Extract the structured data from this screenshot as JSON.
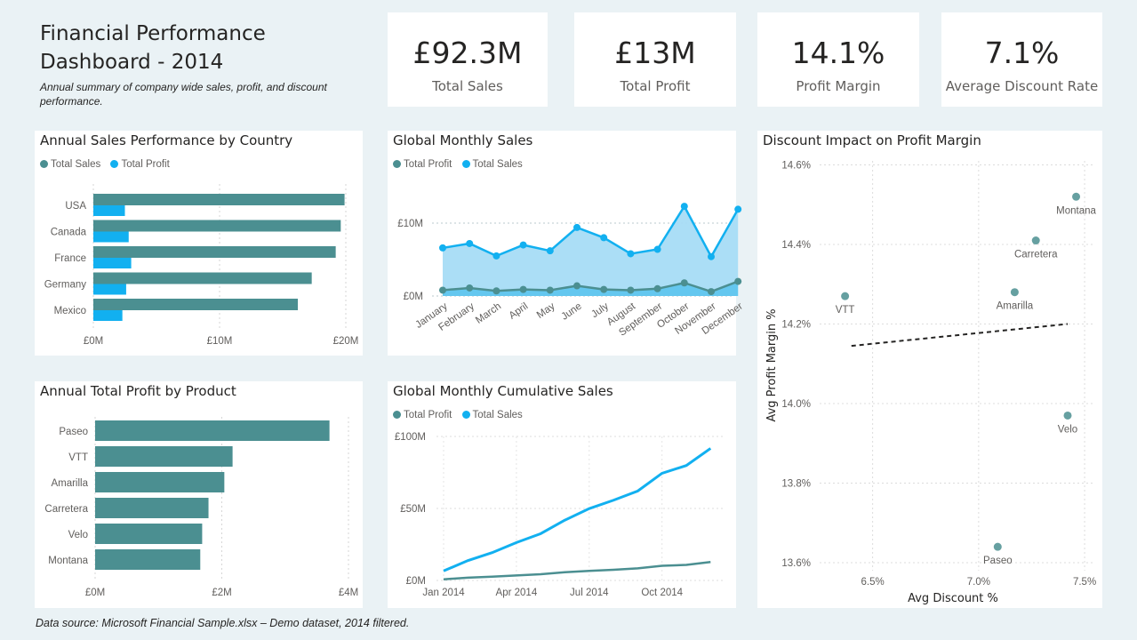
{
  "header": {
    "title_line1": "Financial Performance",
    "title_line2": "Dashboard - 2014",
    "subtitle": "Annual summary of company wide sales, profit, and discount performance."
  },
  "kpis": [
    {
      "value": "£92.3M",
      "label": "Total Sales"
    },
    {
      "value": "£13M",
      "label": "Total Profit"
    },
    {
      "value": "14.1%",
      "label": "Profit Margin"
    },
    {
      "value": "7.1%",
      "label": "Average Discount Rate"
    }
  ],
  "colors": {
    "teal": "#4b8f91",
    "blue": "#12b0f0",
    "area_fill": "#a6dcf6"
  },
  "footer": "Data source: Microsoft Financial Sample.xlsx – Demo dataset, 2014 filtered.",
  "chart_data": [
    {
      "type": "bar",
      "orientation": "horizontal",
      "title": "Annual Sales Performance by Country",
      "categories": [
        "USA",
        "Canada",
        "France",
        "Germany",
        "Mexico"
      ],
      "series": [
        {
          "name": "Total Sales",
          "values": [
            19.9,
            19.6,
            19.2,
            17.3,
            16.2
          ]
        },
        {
          "name": "Total Profit",
          "values": [
            2.5,
            2.8,
            3.0,
            2.6,
            2.3
          ]
        }
      ],
      "xlim": [
        0,
        20
      ],
      "tick_labels": [
        "£0M",
        "£10M",
        "£20M"
      ],
      "legend": [
        "Total Sales",
        "Total Profit"
      ],
      "legend_position": "top-left",
      "grid": true
    },
    {
      "type": "area",
      "title": "Global Monthly Sales",
      "categories": [
        "January",
        "February",
        "March",
        "April",
        "May",
        "June",
        "July",
        "August",
        "September",
        "October",
        "November",
        "December"
      ],
      "series": [
        {
          "name": "Total Profit",
          "values": [
            0.8,
            1.1,
            0.7,
            0.9,
            0.8,
            1.4,
            0.9,
            0.8,
            1.0,
            1.8,
            0.6,
            2.0
          ]
        },
        {
          "name": "Total Sales",
          "values": [
            6.6,
            7.2,
            5.5,
            7.0,
            6.2,
            9.4,
            8.0,
            5.8,
            6.4,
            12.3,
            5.4,
            11.9
          ]
        }
      ],
      "ylim": [
        0,
        14
      ],
      "tick_labels": [
        "£0M",
        "£10M"
      ],
      "legend": [
        "Total Profit",
        "Total Sales"
      ],
      "legend_position": "top-left",
      "grid": true
    },
    {
      "type": "scatter",
      "title": "Discount Impact on Profit Margin",
      "xlabel": "Avg Discount %",
      "ylabel": "Avg Profit Margin %",
      "points": [
        {
          "label": "Montana",
          "x": 7.46,
          "y": 14.52
        },
        {
          "label": "Carretera",
          "x": 7.27,
          "y": 14.41
        },
        {
          "label": "VTT",
          "x": 6.37,
          "y": 14.27
        },
        {
          "label": "Amarilla",
          "x": 7.17,
          "y": 14.28
        },
        {
          "label": "Velo",
          "x": 7.42,
          "y": 13.97
        },
        {
          "label": "Paseo",
          "x": 7.09,
          "y": 13.64
        }
      ],
      "trendline": {
        "x": [
          6.4,
          7.42
        ],
        "y": [
          14.145,
          14.2
        ]
      },
      "xlim": [
        6.25,
        7.55
      ],
      "ylim": [
        13.58,
        14.61
      ],
      "x_tick_labels": [
        "6.5%",
        "7.0%",
        "7.5%"
      ],
      "y_tick_labels": [
        "14.6%",
        "14.4%",
        "14.2%",
        "14.0%",
        "13.8%",
        "13.6%"
      ],
      "grid": true
    },
    {
      "type": "bar",
      "orientation": "horizontal",
      "title": "Annual Total Profit by Product",
      "categories": [
        "Paseo",
        "VTT",
        "Amarilla",
        "Carretera",
        "Velo",
        "Montana"
      ],
      "values": [
        3.7,
        2.17,
        2.04,
        1.79,
        1.69,
        1.66
      ],
      "xlim": [
        0,
        4
      ],
      "tick_labels": [
        "£0M",
        "£2M",
        "£4M"
      ],
      "grid": true
    },
    {
      "type": "line",
      "title": "Global Monthly Cumulative Sales",
      "x": [
        "Jan 2014",
        "Feb 2014",
        "Mar 2014",
        "Apr 2014",
        "May 2014",
        "Jun 2014",
        "Jul 2014",
        "Aug 2014",
        "Sep 2014",
        "Oct 2014",
        "Nov 2014",
        "Dec 2014"
      ],
      "series": [
        {
          "name": "Total Profit",
          "values": [
            0.8,
            1.9,
            2.6,
            3.5,
            4.3,
            5.7,
            6.6,
            7.4,
            8.4,
            10.2,
            10.8,
            12.8
          ]
        },
        {
          "name": "Total Sales",
          "values": [
            6.6,
            13.8,
            19.3,
            26.3,
            32.5,
            41.9,
            49.9,
            55.7,
            62.1,
            74.4,
            79.8,
            91.7
          ]
        }
      ],
      "ylim": [
        0,
        100
      ],
      "tick_labels": [
        "£0M",
        "£50M",
        "£100M"
      ],
      "x_tick_labels": [
        "Jan 2014",
        "Apr 2014",
        "Jul 2014",
        "Oct 2014"
      ],
      "legend": [
        "Total Profit",
        "Total Sales"
      ],
      "legend_position": "top-left",
      "grid": true
    }
  ]
}
